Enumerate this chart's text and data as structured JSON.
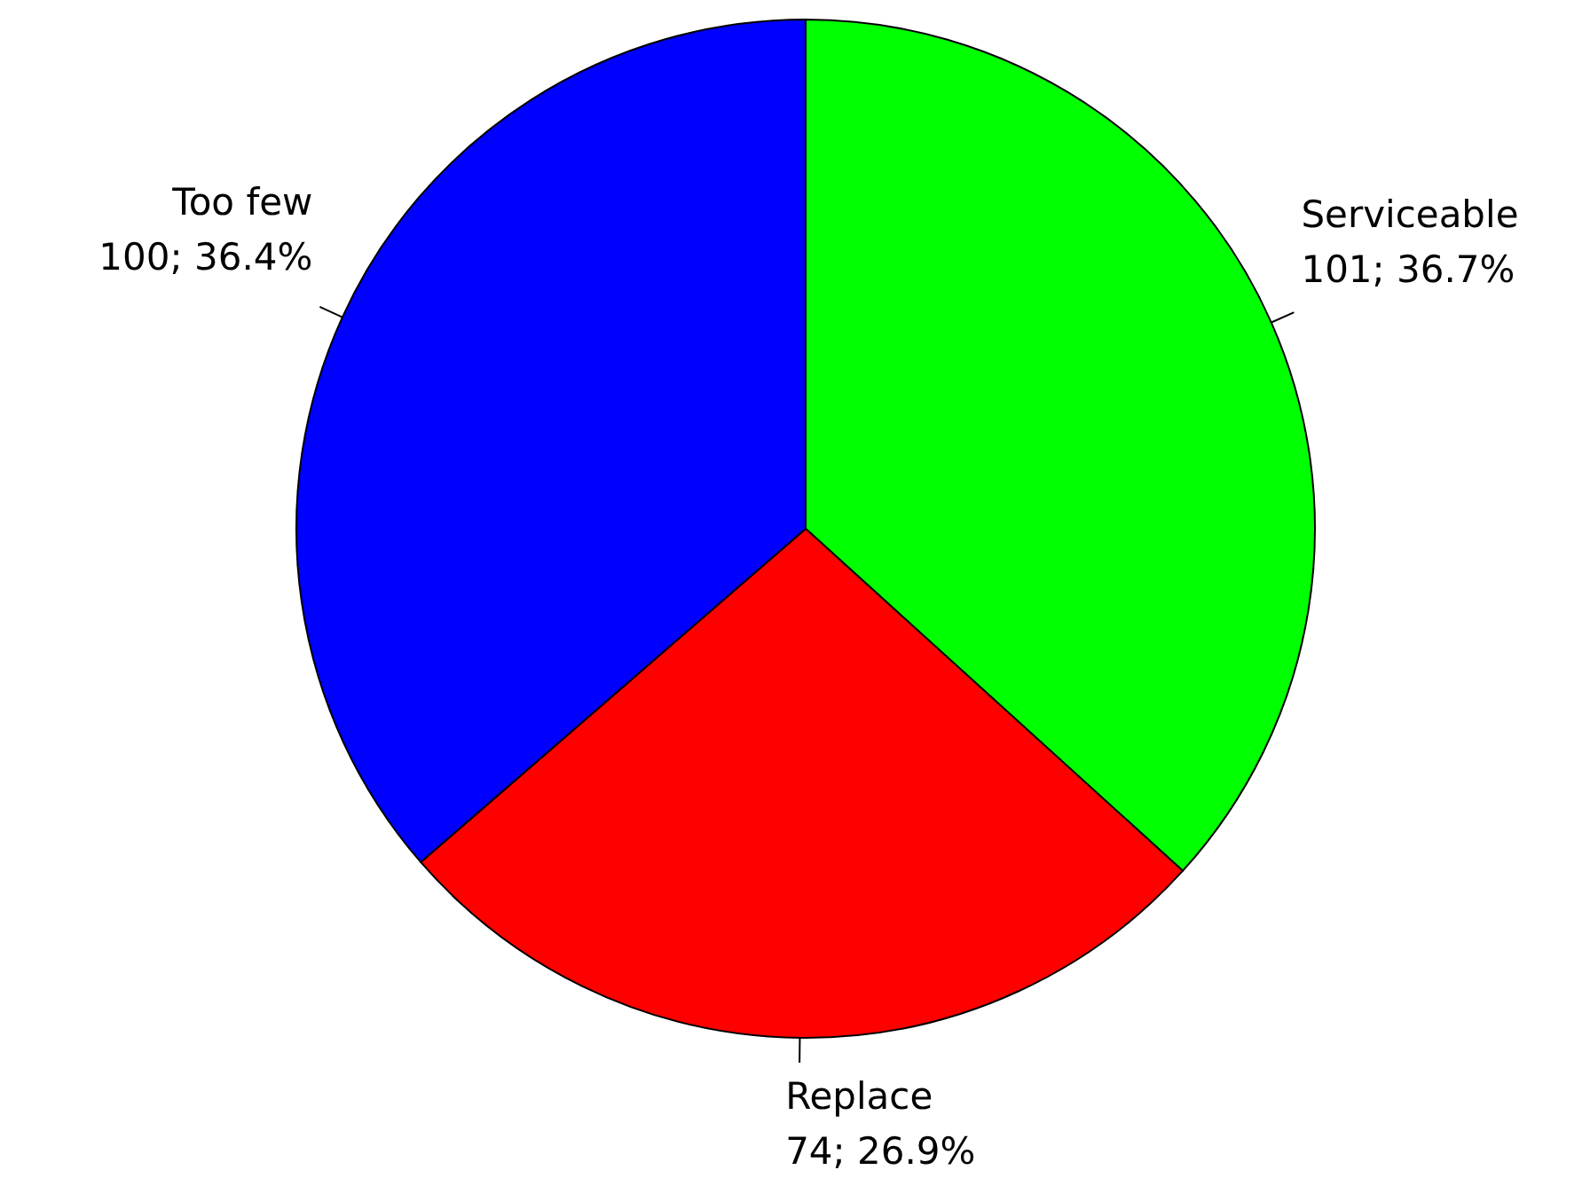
{
  "chart_data": {
    "type": "pie",
    "categories": [
      "Serviceable",
      "Replace",
      "Too few"
    ],
    "values": [
      101,
      74,
      100
    ],
    "colors": [
      "#00ff00",
      "#ff0000",
      "#0000ff"
    ],
    "value_labels": [
      "101; 36.7%",
      "74; 26.9%",
      "100; 36.4%"
    ]
  }
}
